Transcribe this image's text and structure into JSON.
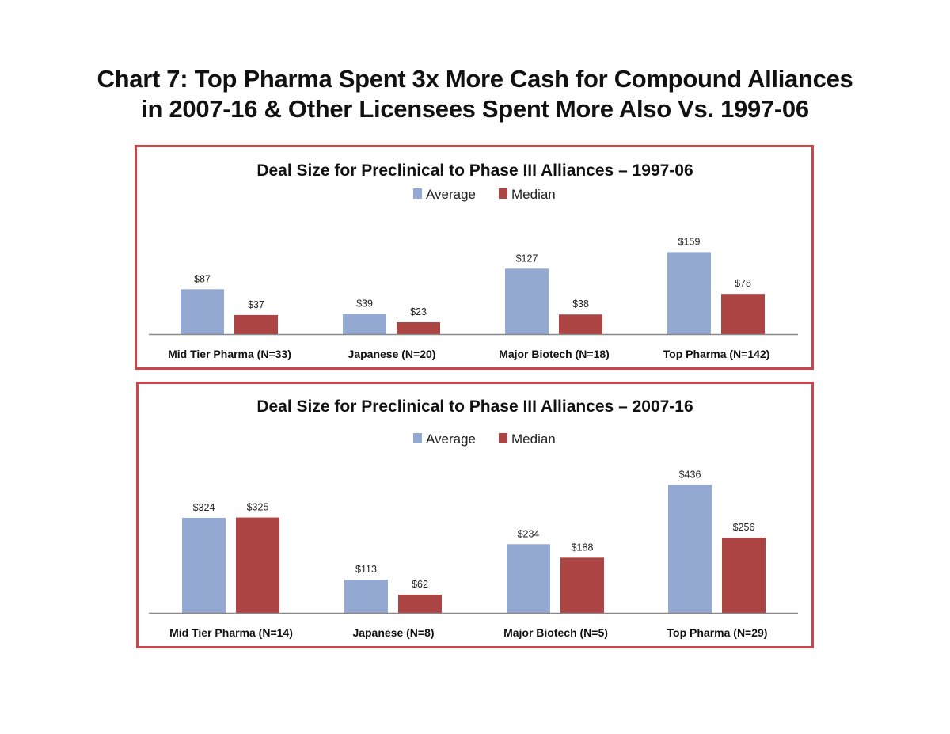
{
  "title_lines": [
    "Chart 7:  Top Pharma Spent 3x More Cash for Compound Alliances",
    "in 2007-16 & Other Licensees Spent More Also Vs. 1997-06"
  ],
  "colors": {
    "average": "#93a9d1",
    "median": "#ac4443",
    "border": "#c9474a"
  },
  "chart_data": [
    {
      "type": "bar",
      "title": "Deal Size for Preclinical to Phase III Alliances – 1997-06",
      "categories": [
        "Mid Tier Pharma (N=33)",
        "Japanese (N=20)",
        "Major Biotech (N=18)",
        "Top Pharma (N=142)"
      ],
      "series": [
        {
          "name": "Average",
          "values": [
            87,
            39,
            127,
            159
          ],
          "labels": [
            "$87",
            "$39",
            "$127",
            "$159"
          ]
        },
        {
          "name": "Median",
          "values": [
            37,
            23,
            38,
            78
          ],
          "labels": [
            "$37",
            "$23",
            "$38",
            "$78"
          ]
        }
      ],
      "legend": "top-center",
      "ylim": [
        0,
        175
      ],
      "grid": false
    },
    {
      "type": "bar",
      "title": "Deal Size for Preclinical to Phase III Alliances – 2007-16",
      "categories": [
        "Mid Tier Pharma (N=14)",
        "Japanese (N=8)",
        "Major Biotech (N=5)",
        "Top Pharma (N=29)"
      ],
      "series": [
        {
          "name": "Average",
          "values": [
            324,
            113,
            234,
            436
          ],
          "labels": [
            "$324",
            "$113",
            "$234",
            "$436"
          ]
        },
        {
          "name": "Median",
          "values": [
            325,
            62,
            188,
            256
          ],
          "labels": [
            "$325",
            "$62",
            "$188",
            "$256"
          ]
        }
      ],
      "legend": "top-center",
      "ylim": [
        0,
        475
      ],
      "grid": false
    }
  ]
}
